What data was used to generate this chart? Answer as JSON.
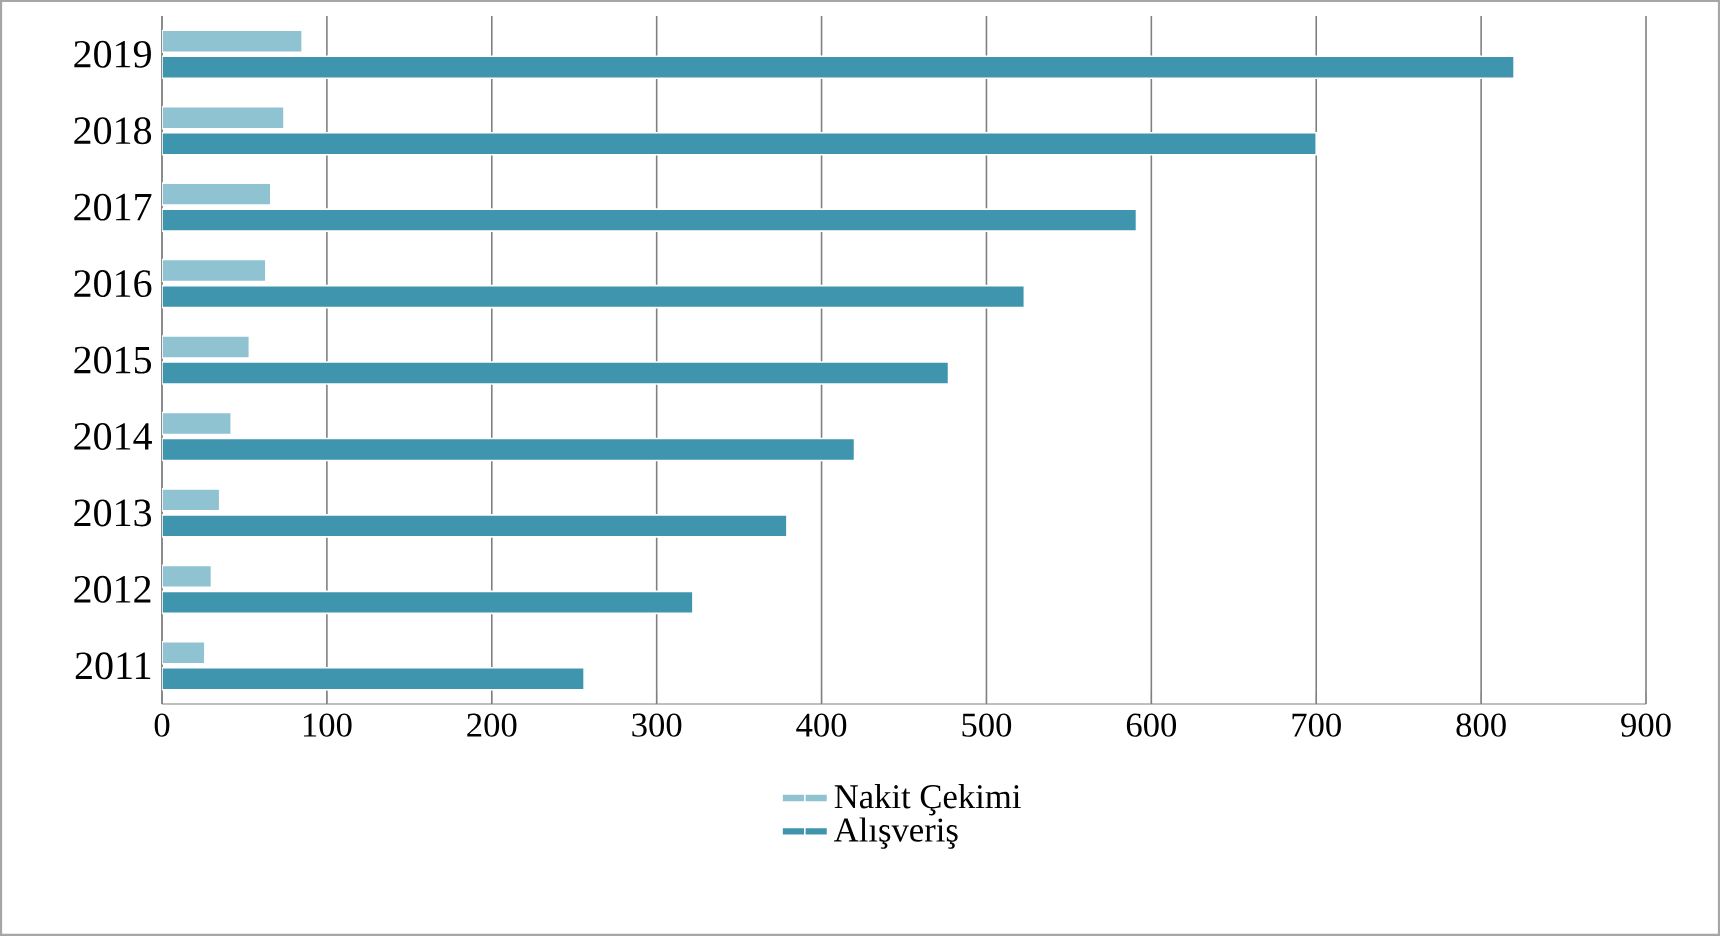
{
  "chart_data": {
    "type": "bar",
    "orientation": "horizontal",
    "categories": [
      "2019",
      "2018",
      "2017",
      "2016",
      "2015",
      "2014",
      "2013",
      "2012",
      "2011"
    ],
    "series": [
      {
        "name": "Nakit Çekimi",
        "color": "#8fc3d1",
        "values": [
          85,
          74,
          66,
          63,
          53,
          42,
          35,
          30,
          26
        ]
      },
      {
        "name": "Alışveriş",
        "color": "#3f95ad",
        "values": [
          820,
          700,
          591,
          523,
          477,
          420,
          379,
          322,
          256
        ]
      }
    ],
    "xlim": [
      0,
      900
    ],
    "xticks": [
      0,
      100,
      200,
      300,
      400,
      500,
      600,
      700,
      800,
      900
    ],
    "grid": "x",
    "legend": "bottom"
  }
}
